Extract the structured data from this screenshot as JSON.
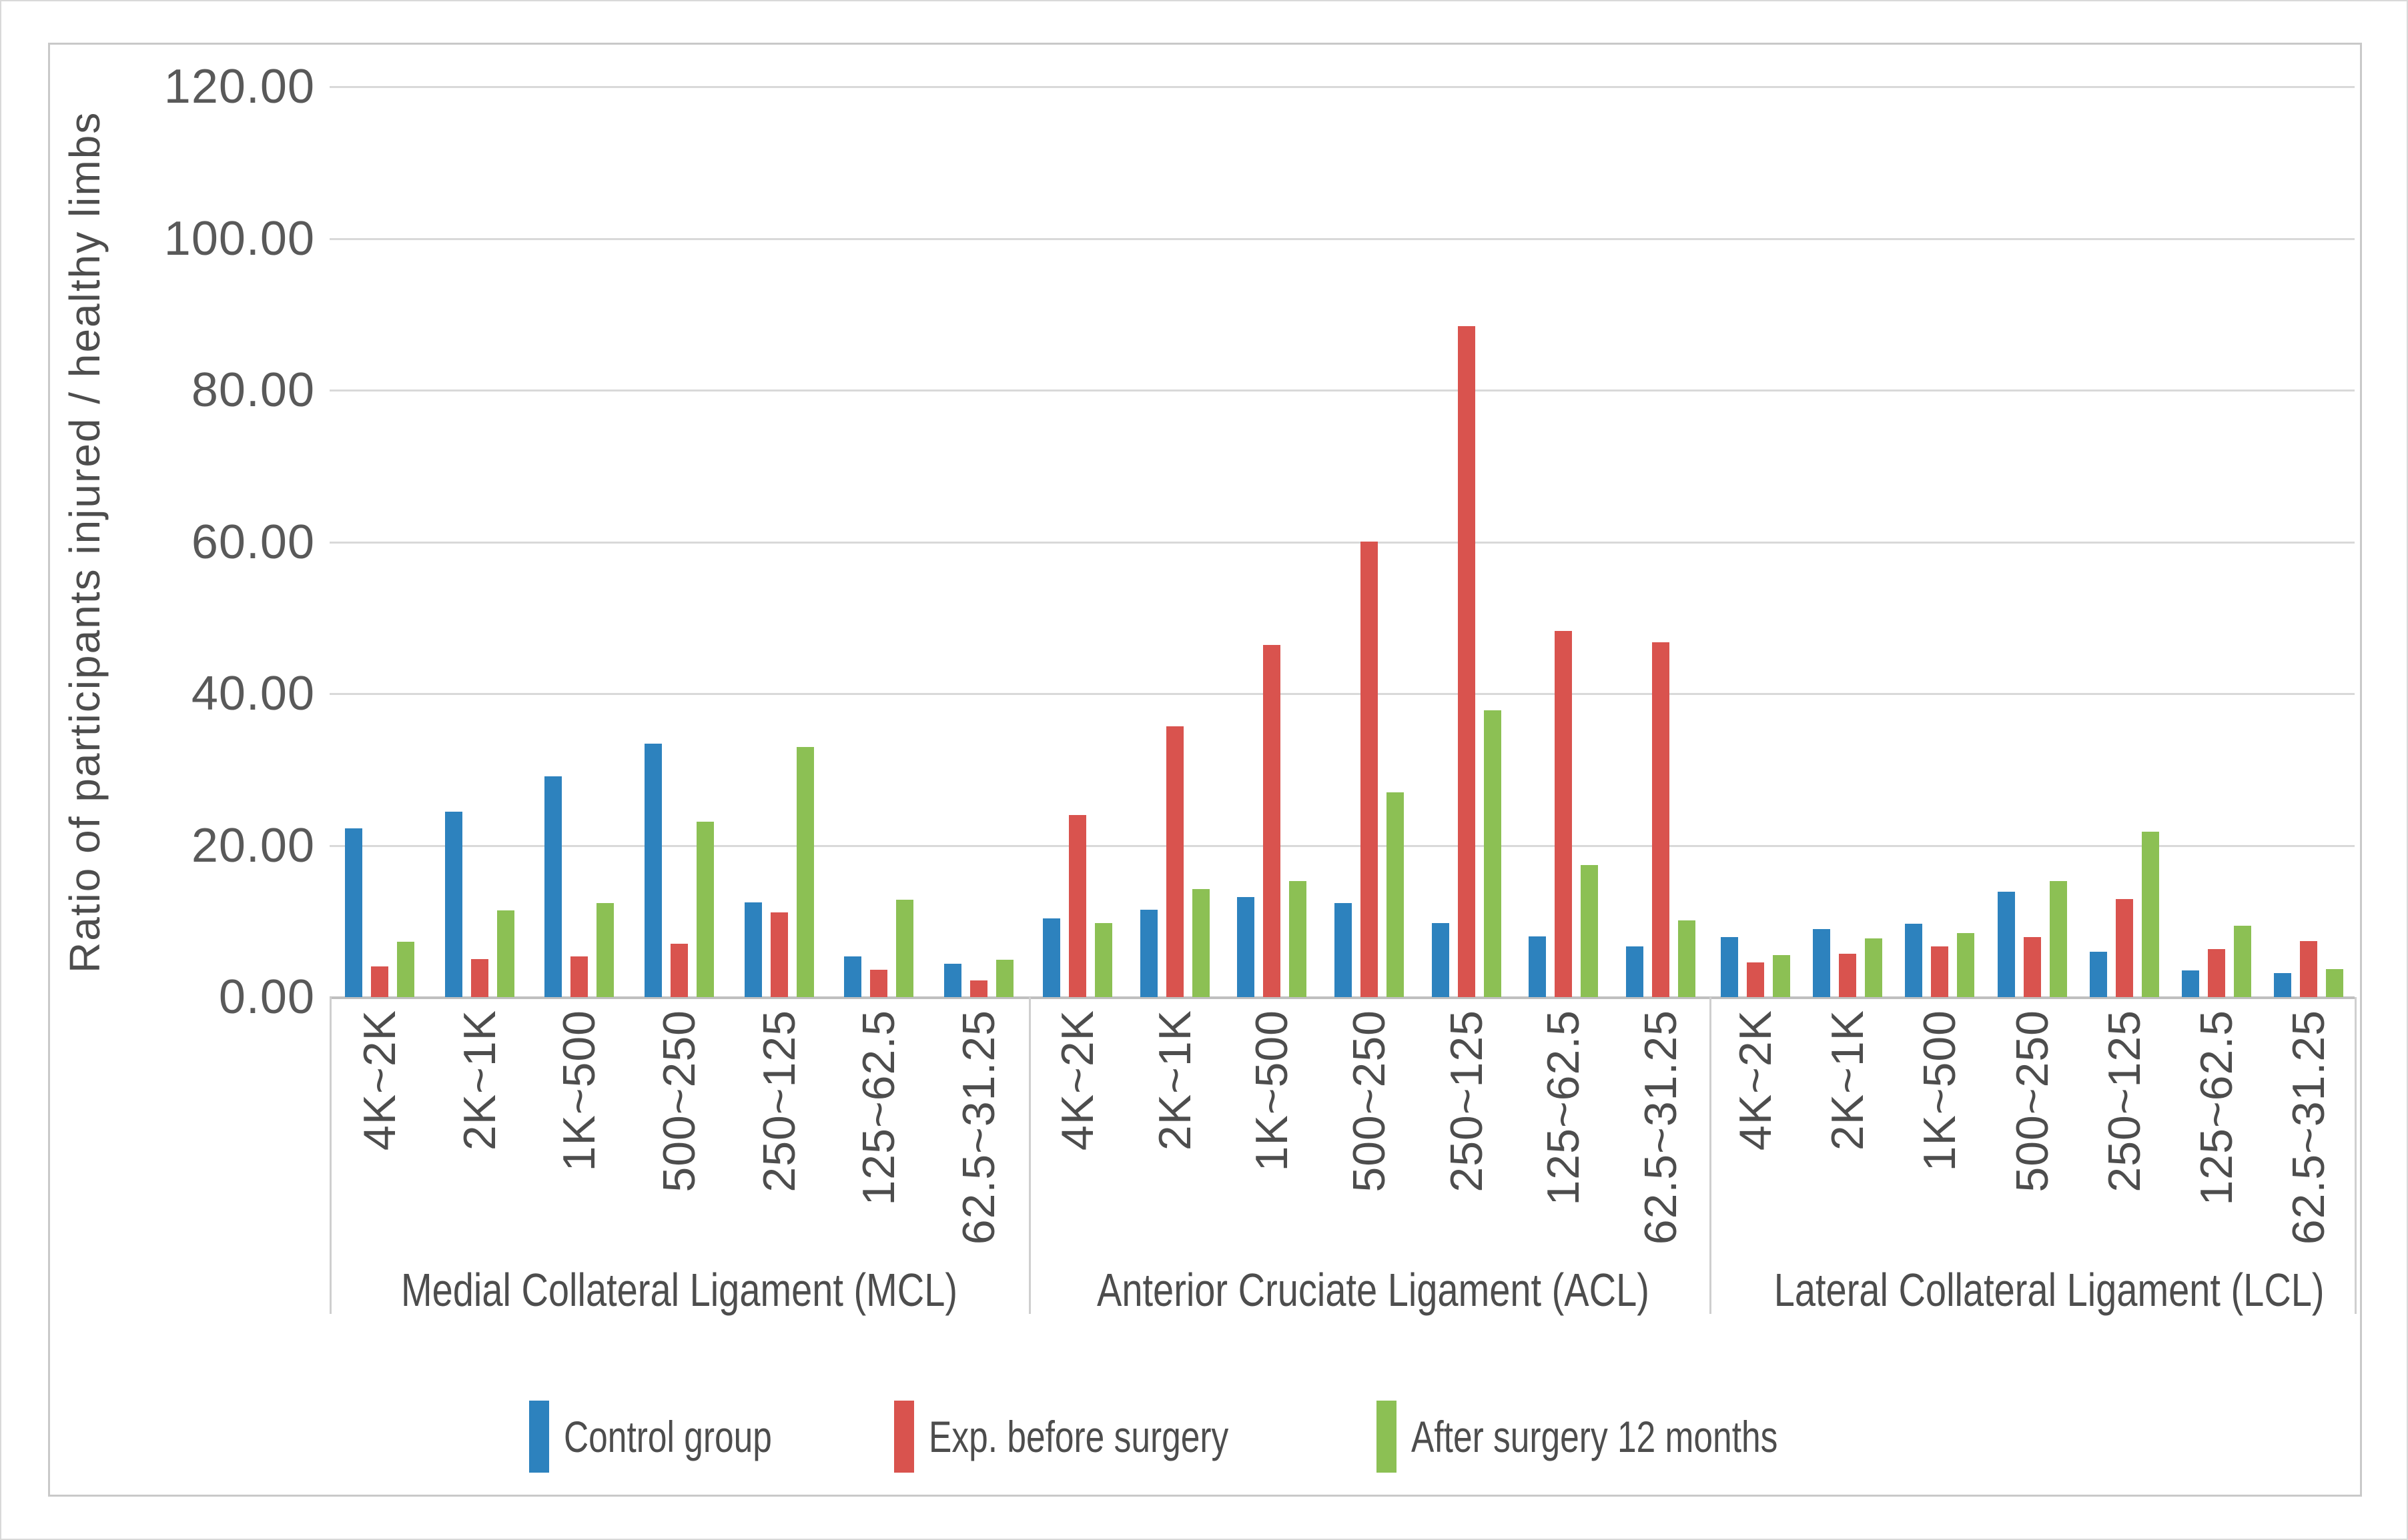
{
  "chart_data": {
    "type": "bar",
    "title": "",
    "xlabel": "",
    "ylabel": "Ratio of participants injured / healthy limbs",
    "ylim": [
      0,
      120
    ],
    "ytick_step": 20,
    "ytick_labels": [
      "120.00",
      "100.00",
      "80.00",
      "60.00",
      "40.00",
      "20.00",
      "0.00"
    ],
    "grid": true,
    "legend_position": "bottom-center",
    "groups": [
      "Medial Collateral Ligament (MCL)",
      "Anterior Cruciate Ligament (ACL)",
      "Lateral Collateral Ligament (LCL)"
    ],
    "categories": [
      "4K~2K",
      "2K~1K",
      "1K~500",
      "500~250",
      "250~125",
      "125~62.5",
      "62.5~31.25"
    ],
    "series": [
      {
        "name": "Control group",
        "color": "#2d82be",
        "values": [
          [
            22.2,
            24.4,
            29.1,
            33.4,
            12.5,
            5.4,
            4.4
          ],
          [
            10.4,
            11.5,
            13.2,
            12.4,
            9.8,
            8.0,
            6.7
          ],
          [
            7.9,
            9.0,
            9.7,
            13.9,
            6.0,
            3.5,
            3.2
          ]
        ]
      },
      {
        "name": "Exp. before surgery",
        "color": "#d9534e",
        "values": [
          [
            4.0,
            5.0,
            5.4,
            7.0,
            11.2,
            3.6,
            2.2
          ],
          [
            24.0,
            35.7,
            46.4,
            60.0,
            88.4,
            48.3,
            46.8
          ],
          [
            4.6,
            5.7,
            6.7,
            7.9,
            12.9,
            6.3,
            7.4
          ]
        ]
      },
      {
        "name": "After surgery 12 months",
        "color": "#8cc054",
        "values": [
          [
            7.3,
            11.4,
            12.4,
            23.1,
            33.0,
            12.8,
            4.9
          ],
          [
            9.8,
            14.2,
            15.3,
            27.0,
            37.8,
            17.4,
            10.1
          ],
          [
            5.5,
            7.7,
            8.4,
            15.3,
            21.8,
            9.4,
            3.7
          ]
        ]
      }
    ]
  }
}
